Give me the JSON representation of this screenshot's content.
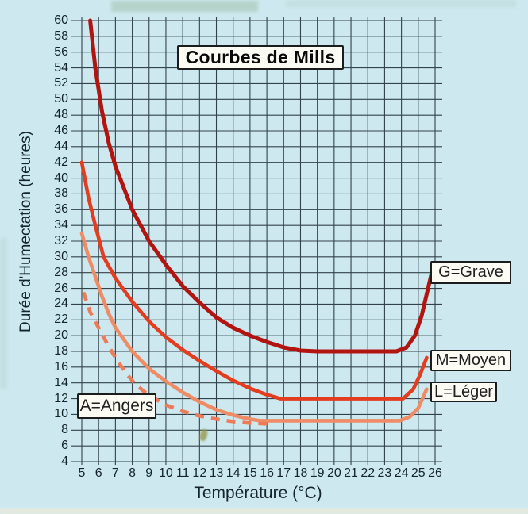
{
  "page": {
    "background_color": "#cde9ef",
    "grid_color": "#33424a"
  },
  "chart_data": {
    "type": "line",
    "title": "Courbes de Mills",
    "xlabel": "Température (°C)",
    "ylabel": "Durée d'Humectation (heures)",
    "xlim": [
      5,
      26
    ],
    "ylim": [
      4,
      60
    ],
    "grid": true,
    "x_ticks": [
      5,
      6,
      7,
      8,
      9,
      10,
      11,
      12,
      13,
      14,
      15,
      16,
      17,
      18,
      19,
      20,
      21,
      22,
      23,
      24,
      25,
      26
    ],
    "y_ticks": [
      60,
      58,
      56,
      54,
      52,
      50,
      48,
      46,
      44,
      42,
      40,
      38,
      36,
      34,
      32,
      30,
      28,
      26,
      24,
      22,
      20,
      18,
      16,
      14,
      12,
      10,
      8,
      6,
      4
    ],
    "legend_position": "boxed labels at curve ends (G/M/L right side, A left side)",
    "series": [
      {
        "name": "grave",
        "label": "G=Grave",
        "color": "#b21410",
        "style": "solid",
        "points": [
          [
            5.5,
            60
          ],
          [
            5.8,
            54
          ],
          [
            6.2,
            48.5
          ],
          [
            6.6,
            44.5
          ],
          [
            7,
            41.5
          ],
          [
            8,
            36
          ],
          [
            9,
            32
          ],
          [
            10,
            29
          ],
          [
            11,
            26.3
          ],
          [
            12,
            24.2
          ],
          [
            13,
            22.3
          ],
          [
            14,
            21
          ],
          [
            15,
            20
          ],
          [
            16,
            19.2
          ],
          [
            17,
            18.5
          ],
          [
            18,
            18.1
          ],
          [
            19,
            18
          ],
          [
            23.7,
            18
          ],
          [
            24.3,
            18.5
          ],
          [
            24.8,
            20
          ],
          [
            25.2,
            22.5
          ],
          [
            25.8,
            28
          ]
        ]
      },
      {
        "name": "moyen",
        "label": "M=Moyen",
        "color": "#e43c1e",
        "style": "solid",
        "points": [
          [
            5,
            42
          ],
          [
            5.4,
            37.5
          ],
          [
            5.8,
            34
          ],
          [
            6.3,
            30
          ],
          [
            7,
            27.3
          ],
          [
            8,
            24.3
          ],
          [
            9,
            21.8
          ],
          [
            10,
            19.8
          ],
          [
            11,
            18.2
          ],
          [
            12,
            16.8
          ],
          [
            13,
            15.5
          ],
          [
            14,
            14.3
          ],
          [
            15,
            13.3
          ],
          [
            16,
            12.5
          ],
          [
            16.8,
            12
          ],
          [
            24.1,
            12
          ],
          [
            24.7,
            13.2
          ],
          [
            25.1,
            15
          ],
          [
            25.5,
            17.2
          ]
        ]
      },
      {
        "name": "leger",
        "label": "L=Léger",
        "color": "#ef8c66",
        "style": "solid",
        "points": [
          [
            5,
            33
          ],
          [
            5.4,
            30
          ],
          [
            5.8,
            27.5
          ],
          [
            6.2,
            25
          ],
          [
            6.6,
            22.8
          ],
          [
            7,
            21
          ],
          [
            8,
            18
          ],
          [
            9,
            15.8
          ],
          [
            10,
            14.2
          ],
          [
            11,
            12.8
          ],
          [
            12,
            11.6
          ],
          [
            13,
            10.6
          ],
          [
            14,
            9.9
          ],
          [
            15,
            9.4
          ],
          [
            15.6,
            9.2
          ],
          [
            23.9,
            9.2
          ],
          [
            24.5,
            9.7
          ],
          [
            25,
            10.8
          ],
          [
            25.5,
            13.2
          ]
        ]
      },
      {
        "name": "angers",
        "label": "A=Angers",
        "color": "#ec7c59",
        "style": "dashed",
        "points": [
          [
            5.1,
            25.5
          ],
          [
            5.5,
            23
          ],
          [
            6,
            21
          ],
          [
            6.5,
            19
          ],
          [
            7,
            17.2
          ],
          [
            7.6,
            15.3
          ],
          [
            8.2,
            13.8
          ],
          [
            9,
            12.4
          ],
          [
            10,
            11.2
          ],
          [
            11,
            10.4
          ],
          [
            12,
            9.8
          ],
          [
            13,
            9.4
          ],
          [
            14,
            9.1
          ],
          [
            15,
            8.9
          ],
          [
            16,
            8.8
          ]
        ]
      }
    ]
  }
}
